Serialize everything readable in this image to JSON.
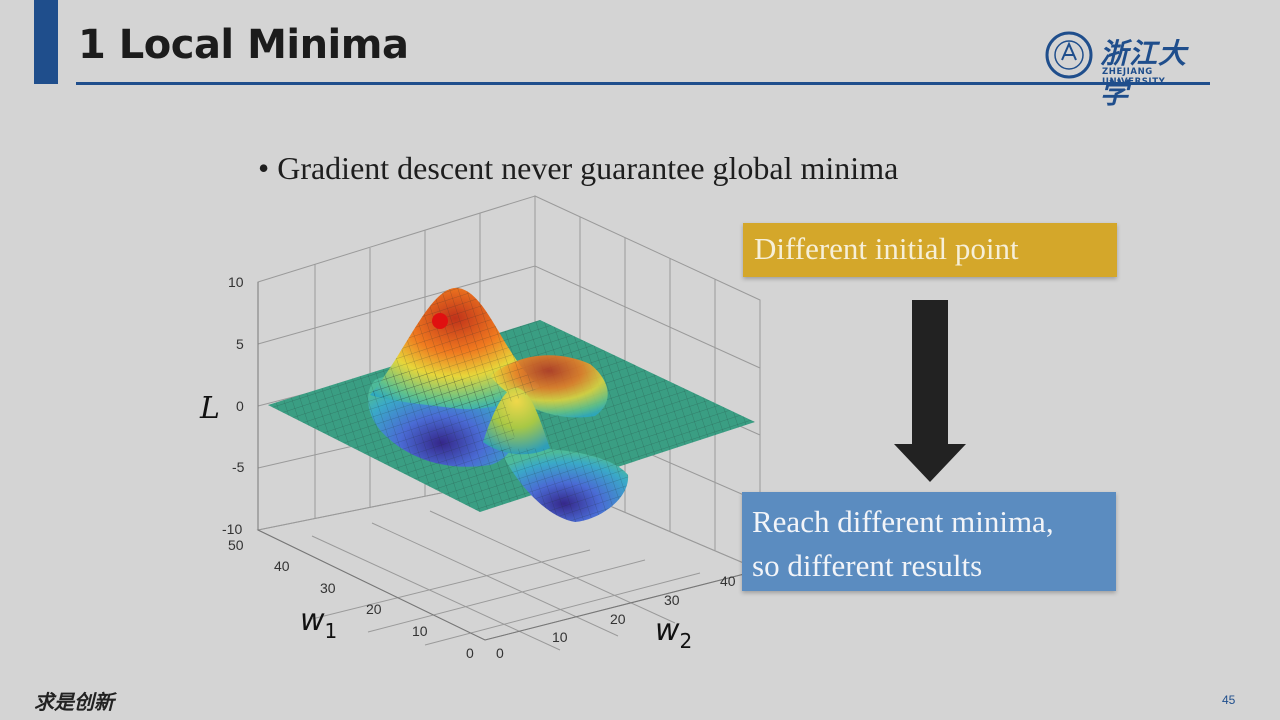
{
  "slide": {
    "title": "1 Local Minima",
    "bullet": "• Gradient descent never guarantee global minima",
    "box_initial": "Different initial point",
    "box_result_line1": "Reach different minima,",
    "box_result_line2": "so different results",
    "page_number": "45",
    "footer_mark": "求是创新"
  },
  "logo": {
    "name_cn": "浙江大学",
    "name_en": "ZHEJIANG UNIVERSITY"
  },
  "plot": {
    "z_label": "L",
    "x_label": "w1",
    "y_label": "w2",
    "z_ticks": [
      "10",
      "5",
      "0",
      "-5",
      "-10"
    ],
    "w1_ticks": [
      "50",
      "40",
      "30",
      "20",
      "10",
      "0"
    ],
    "w2_ticks": [
      "0",
      "10",
      "20",
      "30",
      "40"
    ]
  },
  "colors": {
    "accent": "#1f4e8c",
    "box_initial": "#d4a72a",
    "box_result": "#5b8cc0",
    "start_point": "#e01010"
  }
}
